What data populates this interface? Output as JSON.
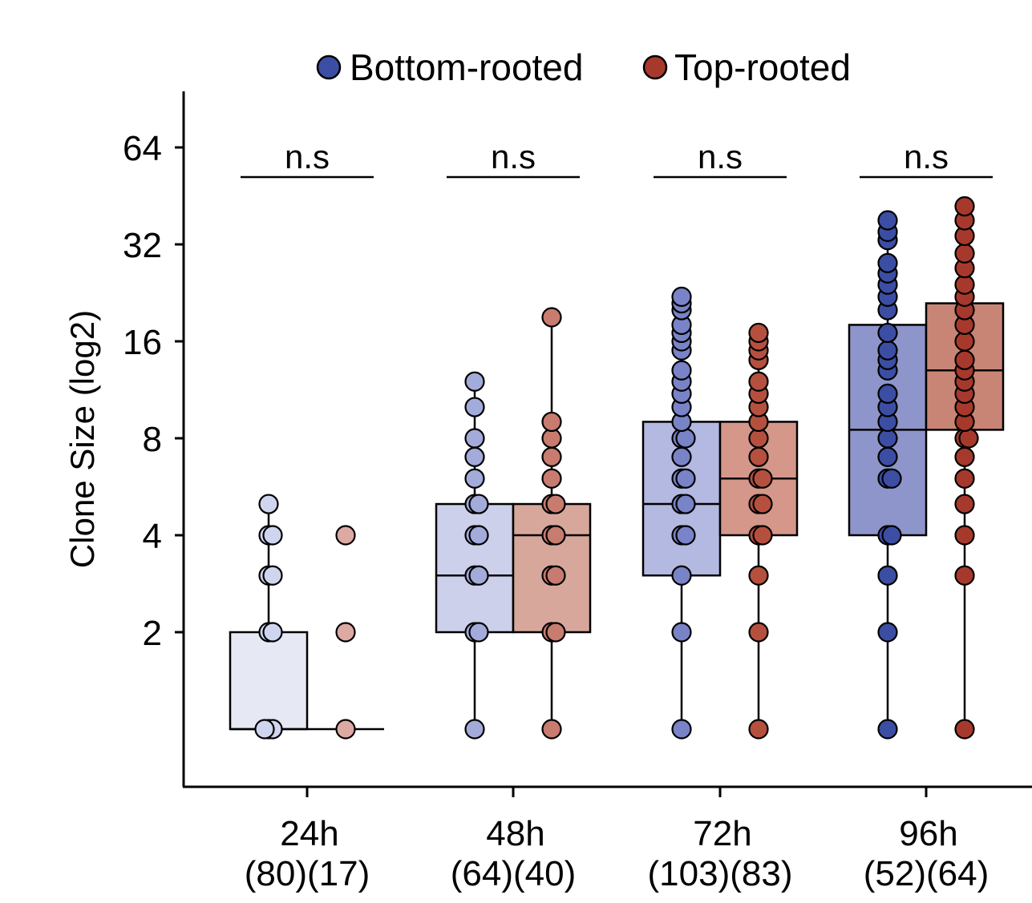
{
  "chart_data": {
    "type": "box",
    "ylabel": "Clone Size (log2)",
    "yscale": "log2",
    "yticks": [
      2,
      4,
      8,
      16,
      32,
      64
    ],
    "ytick_labels": [
      "2",
      "4",
      "8",
      "16",
      "32",
      "64"
    ],
    "ylim": [
      0.6,
      90
    ],
    "legend": [
      {
        "name": "Bottom-rooted",
        "color": "#3c4ea3"
      },
      {
        "name": "Top-rooted",
        "color": "#a7392c"
      }
    ],
    "groups": [
      {
        "label": "24h",
        "counts": "(80)(17)",
        "significance": "n.s",
        "boxes": [
          {
            "series": "Bottom-rooted",
            "q1": 1,
            "median": 1,
            "q3": 2,
            "whisker_low": 1,
            "whisker_high": 5,
            "fill": "#e6e8f4",
            "point": "#cfd5ee",
            "points": [
              1,
              1,
              1,
              2,
              2,
              3,
              3,
              4,
              4,
              5
            ]
          },
          {
            "series": "Top-rooted",
            "q1": 1,
            "median": 1,
            "q3": 1,
            "whisker_low": 1,
            "whisker_high": 1,
            "fill": "#eed9d4",
            "point": "#ddaaa3",
            "points": [
              1,
              2,
              4
            ]
          }
        ]
      },
      {
        "label": "48h",
        "counts": "(64)(40)",
        "significance": "n.s",
        "boxes": [
          {
            "series": "Bottom-rooted",
            "q1": 2,
            "median": 3,
            "q3": 5,
            "whisker_low": 1,
            "whisker_high": 12,
            "fill": "#cdd0ea",
            "point": "#a2abd9",
            "points": [
              1,
              2,
              2,
              3,
              3,
              4,
              4,
              5,
              5,
              6,
              7,
              8,
              10,
              12
            ]
          },
          {
            "series": "Top-rooted",
            "q1": 2,
            "median": 4,
            "q3": 5,
            "whisker_low": 1,
            "whisker_high": 19,
            "fill": "#d8a79c",
            "point": "#c77c6f",
            "points": [
              1,
              2,
              2,
              3,
              3,
              4,
              4,
              5,
              5,
              6,
              7,
              8,
              9,
              19
            ]
          }
        ]
      },
      {
        "label": "72h",
        "counts": "(103)(83)",
        "significance": "n.s",
        "boxes": [
          {
            "series": "Bottom-rooted",
            "q1": 3,
            "median": 5,
            "q3": 9,
            "whisker_low": 1,
            "whisker_high": 22,
            "fill": "#b3b9e0",
            "point": "#7983c7",
            "points": [
              1,
              2,
              3,
              4,
              4,
              5,
              5,
              6,
              6,
              7,
              8,
              8,
              9,
              10,
              11,
              12,
              13,
              15,
              16,
              17,
              18,
              20,
              21,
              22
            ]
          },
          {
            "series": "Top-rooted",
            "q1": 4,
            "median": 6,
            "q3": 9,
            "whisker_low": 1,
            "whisker_high": 17,
            "fill": "#d4978a",
            "point": "#b5503f",
            "points": [
              1,
              2,
              3,
              4,
              4,
              5,
              5,
              6,
              6,
              7,
              8,
              9,
              10,
              11,
              12,
              14,
              15,
              16,
              17
            ]
          }
        ]
      },
      {
        "label": "96h",
        "counts": "(52)(64)",
        "significance": "n.s",
        "boxes": [
          {
            "series": "Bottom-rooted",
            "q1": 4,
            "median": 8.5,
            "q3": 18,
            "whisker_low": 1,
            "whisker_high": 38,
            "fill": "#8e95ca",
            "point": "#3c4ea3",
            "points": [
              1,
              2,
              3,
              4,
              4,
              6,
              6,
              7,
              8,
              9,
              10,
              11,
              13,
              14,
              15,
              17,
              20,
              22,
              24,
              26,
              28,
              33,
              35,
              38
            ]
          },
          {
            "series": "Top-rooted",
            "q1": 8.5,
            "median": 13,
            "q3": 21,
            "whisker_low": 1,
            "whisker_high": 42,
            "fill": "#c88576",
            "point": "#a7392c",
            "points": [
              1,
              3,
              4,
              5,
              6,
              7,
              8,
              8,
              9,
              10,
              11,
              12,
              13,
              14,
              16,
              18,
              20,
              22,
              24,
              27,
              30,
              34,
              38,
              42
            ]
          }
        ]
      }
    ]
  }
}
